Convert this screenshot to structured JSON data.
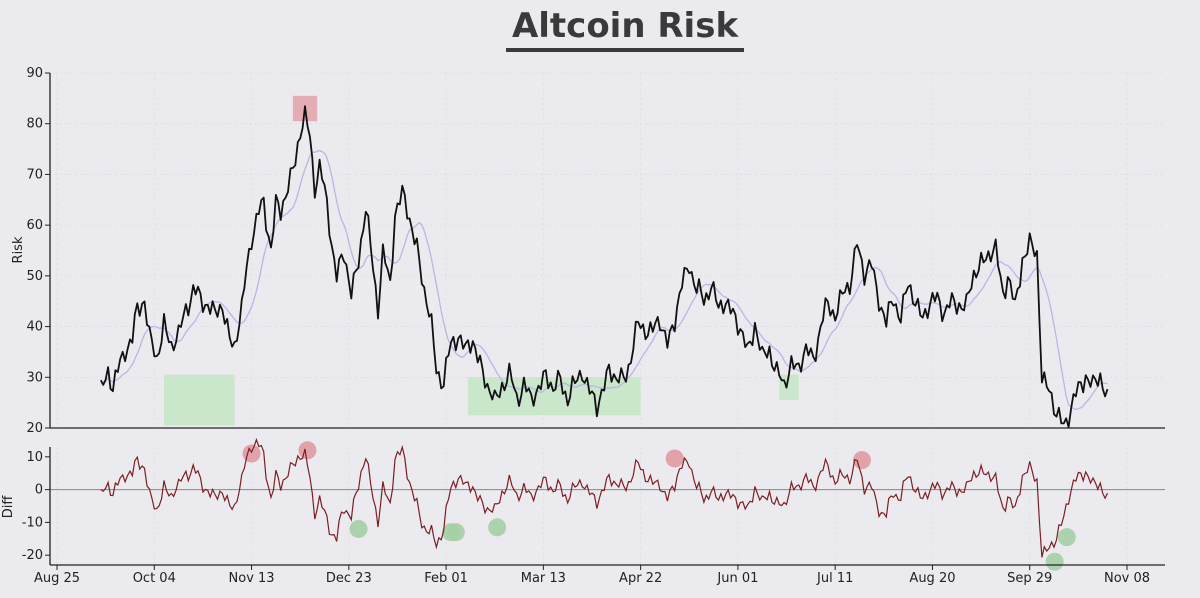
{
  "chart_data": [
    {
      "type": "line",
      "title": "Altcoin Risk",
      "xlabel": "",
      "ylabel": "Risk",
      "ylim": [
        20,
        90
      ],
      "yticks": [
        20,
        30,
        40,
        50,
        60,
        70,
        80,
        90
      ],
      "x_ticks": [
        "Aug 25",
        "Oct 04",
        "Nov 13",
        "Dec 23",
        "Feb 01",
        "Mar 13",
        "Apr 22",
        "Jun 01",
        "Jul 11",
        "Aug 20",
        "Sep 29",
        "Nov 08"
      ],
      "anchors": [
        [
          "Sep 12",
          28
        ],
        [
          "Sep 15",
          31
        ],
        [
          "Sep 17",
          27.5
        ],
        [
          "Sep 20",
          33
        ],
        [
          "Sep 22",
          36
        ],
        [
          "Sep 25",
          37
        ],
        [
          "Sep 27",
          43
        ],
        [
          "Sep 30",
          46
        ],
        [
          "Oct 02",
          38
        ],
        [
          "Oct 05",
          33
        ],
        [
          "Oct 08",
          41
        ],
        [
          "Oct 11",
          36
        ],
        [
          "Oct 14",
          38
        ],
        [
          "Oct 17",
          44
        ],
        [
          "Oct 20",
          47
        ],
        [
          "Oct 23",
          45
        ],
        [
          "Oct 26",
          45
        ],
        [
          "Oct 29",
          42
        ],
        [
          "Nov 01",
          44
        ],
        [
          "Nov 04",
          38
        ],
        [
          "Nov 06",
          36
        ],
        [
          "Nov 09",
          43
        ],
        [
          "Nov 11",
          52
        ],
        [
          "Nov 13",
          58
        ],
        [
          "Nov 16",
          62
        ],
        [
          "Nov 18",
          64
        ],
        [
          "Nov 21",
          56
        ],
        [
          "Nov 23",
          64
        ],
        [
          "Nov 25",
          62
        ],
        [
          "Nov 28",
          68
        ],
        [
          "Dec 01",
          73
        ],
        [
          "Dec 03",
          78
        ],
        [
          "Dec 05",
          81
        ],
        [
          "Dec 07",
          78
        ],
        [
          "Dec 09",
          68
        ],
        [
          "Dec 11",
          71
        ],
        [
          "Dec 14",
          64
        ],
        [
          "Dec 16",
          57
        ],
        [
          "Dec 18",
          50
        ],
        [
          "Dec 21",
          54
        ],
        [
          "Dec 24",
          47
        ],
        [
          "Dec 27",
          53
        ],
        [
          "Dec 30",
          63
        ],
        [
          "Jan 02",
          52
        ],
        [
          "Jan 04",
          44
        ],
        [
          "Jan 06",
          54
        ],
        [
          "Jan 09",
          48
        ],
        [
          "Jan 11",
          63
        ],
        [
          "Jan 14",
          66
        ],
        [
          "Jan 17",
          61
        ],
        [
          "Jan 20",
          56
        ],
        [
          "Jan 23",
          47
        ],
        [
          "Jan 26",
          40
        ],
        [
          "Jan 28",
          32
        ],
        [
          "Jan 31",
          29
        ],
        [
          "Feb 03",
          36
        ],
        [
          "Feb 06",
          39
        ],
        [
          "Feb 09",
          35
        ],
        [
          "Feb 12",
          37
        ],
        [
          "Feb 15",
          33
        ],
        [
          "Feb 18",
          28
        ],
        [
          "Feb 21",
          25
        ],
        [
          "Feb 24",
          29
        ],
        [
          "Feb 27",
          30
        ],
        [
          "Mar 02",
          26
        ],
        [
          "Mar 05",
          29
        ],
        [
          "Mar 08",
          25
        ],
        [
          "Mar 11",
          28
        ],
        [
          "Mar 14",
          31
        ],
        [
          "Mar 17",
          27
        ],
        [
          "Mar 20",
          30
        ],
        [
          "Mar 23",
          26
        ],
        [
          "Mar 26",
          28
        ],
        [
          "Mar 29",
          32
        ],
        [
          "Apr 01",
          27
        ],
        [
          "Apr 04",
          24
        ],
        [
          "Apr 06",
          27
        ],
        [
          "Apr 09",
          32
        ],
        [
          "Apr 12",
          29
        ],
        [
          "Apr 15",
          30
        ],
        [
          "Apr 18",
          34
        ],
        [
          "Apr 21",
          40
        ],
        [
          "Apr 24",
          40
        ],
        [
          "Apr 27",
          39
        ],
        [
          "Apr 30",
          41
        ],
        [
          "May 03",
          37
        ],
        [
          "May 06",
          41
        ],
        [
          "May 09",
          48
        ],
        [
          "May 12",
          53
        ],
        [
          "May 15",
          47
        ],
        [
          "May 18",
          45
        ],
        [
          "May 21",
          49
        ],
        [
          "May 24",
          43
        ],
        [
          "May 27",
          45
        ],
        [
          "May 30",
          43
        ],
        [
          "Jun 02",
          39
        ],
        [
          "Jun 05",
          35
        ],
        [
          "Jun 08",
          41
        ],
        [
          "Jun 11",
          33
        ],
        [
          "Jun 14",
          36
        ],
        [
          "Jun 17",
          31
        ],
        [
          "Jun 20",
          28
        ],
        [
          "Jun 23",
          33
        ],
        [
          "Jun 26",
          32
        ],
        [
          "Jun 29",
          35
        ],
        [
          "Jul 02",
          34
        ],
        [
          "Jul 05",
          40
        ],
        [
          "Jul 08",
          44
        ],
        [
          "Jul 11",
          43
        ],
        [
          "Jul 14",
          46
        ],
        [
          "Jul 17",
          48
        ],
        [
          "Jul 20",
          57
        ],
        [
          "Jul 23",
          50
        ],
        [
          "Jul 26",
          52
        ],
        [
          "Jul 29",
          46
        ],
        [
          "Aug 01",
          40
        ],
        [
          "Aug 04",
          46
        ],
        [
          "Aug 07",
          42
        ],
        [
          "Aug 10",
          48
        ],
        [
          "Aug 13",
          45
        ],
        [
          "Aug 16",
          42
        ],
        [
          "Aug 19",
          44
        ],
        [
          "Aug 22",
          46
        ],
        [
          "Aug 25",
          43
        ],
        [
          "Aug 28",
          44
        ],
        [
          "Aug 31",
          45
        ],
        [
          "Sep 03",
          44
        ],
        [
          "Sep 06",
          50
        ],
        [
          "Sep 09",
          53
        ],
        [
          "Sep 12",
          54
        ],
        [
          "Sep 15",
          55
        ],
        [
          "Sep 18",
          47
        ],
        [
          "Sep 20",
          50
        ],
        [
          "Sep 23",
          43
        ],
        [
          "Sep 26",
          54
        ],
        [
          "Sep 29",
          56
        ],
        [
          "Oct 02",
          54
        ],
        [
          "Oct 04",
          30
        ],
        [
          "Oct 07",
          28
        ],
        [
          "Oct 10",
          22
        ],
        [
          "Oct 13",
          21
        ],
        [
          "Oct 16",
          24
        ],
        [
          "Oct 19",
          27
        ],
        [
          "Oct 22",
          31
        ],
        [
          "Oct 25",
          28
        ],
        [
          "Oct 28",
          30
        ],
        [
          "Oct 31",
          26
        ]
      ],
      "series": [
        {
          "values_ref": "anchors",
          "color": "#111111"
        },
        {
          "smoothing_window": 12,
          "color": "#b9b7e3"
        }
      ],
      "grid": true
    },
    {
      "type": "line",
      "xlabel": "",
      "ylabel": "Diff",
      "ylim": [
        -23,
        13
      ],
      "yticks": [
        -20,
        -10,
        0,
        10
      ],
      "baseline": 0,
      "series": [
        {
          "values": "anchors minus smoothed",
          "color": "#7a1f25"
        }
      ],
      "grid": true
    }
  ],
  "highlight_boxes": [
    {
      "x_from": "Nov 30",
      "x_to": "Dec 10",
      "y_from": 80.5,
      "y_to": 85.5,
      "color": "#e3a2a9"
    },
    {
      "x_from": "Feb 10",
      "x_to": "Apr 22",
      "y_from": 22.5,
      "y_to": 30,
      "color": "#c4e5c4"
    },
    {
      "x_from": "Jun 18",
      "x_to": "Jun 26",
      "y_from": 25.5,
      "y_to": 30.5,
      "color": "#c4e5c4"
    },
    {
      "x_from": "Oct 08",
      "x_to": "Nov 06",
      "y_from": 20.5,
      "y_to": 30.5,
      "color": "#c4e5c4"
    }
  ],
  "highlight_markers": [
    {
      "x": "Nov 13",
      "y": 11,
      "color": "#e09aa2"
    },
    {
      "x": "Dec 06",
      "y": 12,
      "color": "#e09aa2"
    },
    {
      "x": "Dec 27",
      "y": -12,
      "color": "#a4cfa4"
    },
    {
      "x": "Feb 03",
      "y": -13,
      "color": "#a4cfa4"
    },
    {
      "x": "Feb 05",
      "y": -13,
      "color": "#a4cfa4"
    },
    {
      "x": "Feb 22",
      "y": -11.5,
      "color": "#a4cfa4"
    },
    {
      "x": "May 06",
      "y": 9.5,
      "color": "#e09aa2"
    },
    {
      "x": "Jul 22",
      "y": 9,
      "color": "#e09aa2"
    },
    {
      "x": "Oct 09",
      "y": -22,
      "color": "#a4cfa4"
    },
    {
      "x": "Oct 14",
      "y": -14.5,
      "color": "#a4cfa4"
    }
  ]
}
